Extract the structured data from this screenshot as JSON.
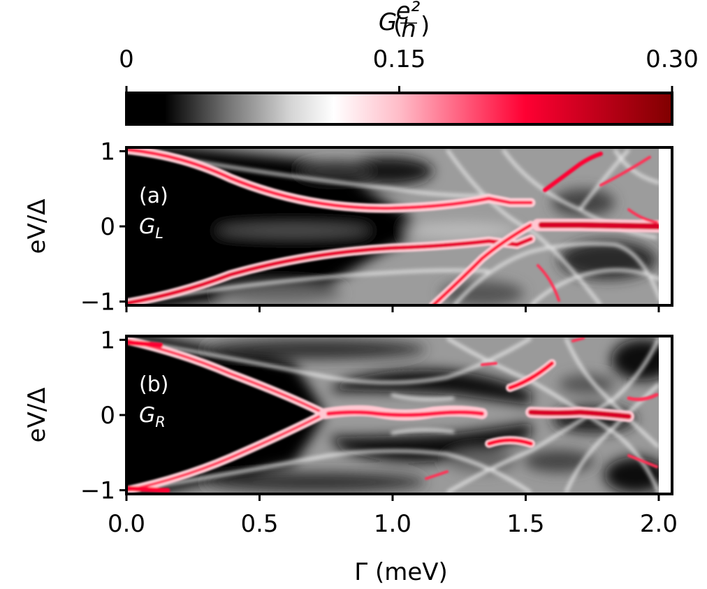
{
  "colorbar": {
    "label_symbol": "G",
    "label_frac_num": "e²",
    "label_frac_den": "h",
    "ticks": [
      {
        "value": 0,
        "label": "0"
      },
      {
        "value": 0.15,
        "label": "0.15"
      },
      {
        "value": 0.3,
        "label": "0.30"
      }
    ],
    "range": [
      0,
      0.3
    ],
    "colormap": [
      "#000000",
      "#000000",
      "#ffffff",
      "#ff0033",
      "#800000"
    ]
  },
  "chart_data": [
    {
      "type": "heatmap",
      "panel_label": "(a)",
      "quantity_symbol": "G",
      "quantity_sub": "L",
      "xlabel": "Γ (meV)",
      "ylabel": "eV/Δ",
      "xlim": [
        0,
        2.05
      ],
      "ylim": [
        -1.05,
        1.05
      ],
      "x_ticks": [
        0.0,
        0.5,
        1.0,
        1.5,
        2.0
      ],
      "x_tick_labels_shown": false,
      "y_ticks": [
        {
          "value": 1,
          "label": "1"
        },
        {
          "value": 0,
          "label": "0"
        },
        {
          "value": -1,
          "label": "−1"
        }
      ],
      "ridges_red": [
        {
          "name": "upper branch",
          "x": [
            0,
            0.25,
            0.5,
            0.75,
            1.0,
            1.2,
            1.38,
            1.45
          ],
          "y": [
            1.0,
            0.85,
            0.62,
            0.42,
            0.28,
            0.25,
            0.35,
            0.3
          ]
        },
        {
          "name": "lower branch",
          "x": [
            0,
            0.25,
            0.5,
            0.75,
            1.0,
            1.2,
            1.38,
            1.45
          ],
          "y": [
            -1.0,
            -0.85,
            -0.62,
            -0.42,
            -0.3,
            -0.28,
            -0.25,
            -0.28
          ]
        },
        {
          "name": "zero-bias peak",
          "x": [
            1.55,
            1.7,
            1.85,
            2.0
          ],
          "y": [
            0.0,
            0.02,
            0.02,
            0.02
          ]
        },
        {
          "name": "crossing line",
          "x": [
            1.08,
            1.25,
            1.4,
            1.55
          ],
          "y": [
            -1.0,
            -0.55,
            -0.1,
            0.0
          ]
        }
      ],
      "gap_region_black": {
        "x_max_at_zero_bias": 0.8
      }
    },
    {
      "type": "heatmap",
      "panel_label": "(b)",
      "quantity_symbol": "G",
      "quantity_sub": "R",
      "xlabel": "Γ (meV)",
      "ylabel": "eV/Δ",
      "xlim": [
        0,
        2.05
      ],
      "ylim": [
        -1.05,
        1.05
      ],
      "x_ticks": [
        {
          "value": 0.0,
          "label": "0.0"
        },
        {
          "value": 0.5,
          "label": "0.5"
        },
        {
          "value": 1.0,
          "label": "1.0"
        },
        {
          "value": 1.5,
          "label": "1.5"
        },
        {
          "value": 2.0,
          "label": "2.0"
        }
      ],
      "y_ticks": [
        {
          "value": 1,
          "label": "1"
        },
        {
          "value": 0,
          "label": "0"
        },
        {
          "value": -1,
          "label": "−1"
        }
      ],
      "ridges_red": [
        {
          "name": "upper branch",
          "x": [
            0,
            0.2,
            0.4,
            0.6,
            0.75
          ],
          "y": [
            1.0,
            0.8,
            0.5,
            0.2,
            0.0
          ]
        },
        {
          "name": "lower branch",
          "x": [
            0,
            0.2,
            0.4,
            0.6,
            0.75
          ],
          "y": [
            -1.0,
            -0.8,
            -0.5,
            -0.2,
            0.0
          ]
        },
        {
          "name": "zero-bias lobe",
          "x": [
            0.75,
            0.85,
            1.0,
            1.15,
            1.3
          ],
          "y": [
            0.0,
            0.0,
            0.0,
            0.0,
            0.0
          ]
        },
        {
          "name": "zero-bias lobe 2",
          "x": [
            1.5,
            1.6,
            1.7,
            1.8
          ],
          "y": [
            0.0,
            0.0,
            0.0,
            0.0
          ]
        },
        {
          "name": "upper segment",
          "x": [
            1.35,
            1.45,
            1.55
          ],
          "y": [
            0.35,
            0.42,
            0.5
          ]
        },
        {
          "name": "lower segment",
          "x": [
            1.35,
            1.45,
            1.55
          ],
          "y": [
            -0.35,
            -0.3,
            -0.38
          ]
        }
      ],
      "gap_region_black": {
        "x_max_at_zero_bias": 0.72
      }
    }
  ]
}
